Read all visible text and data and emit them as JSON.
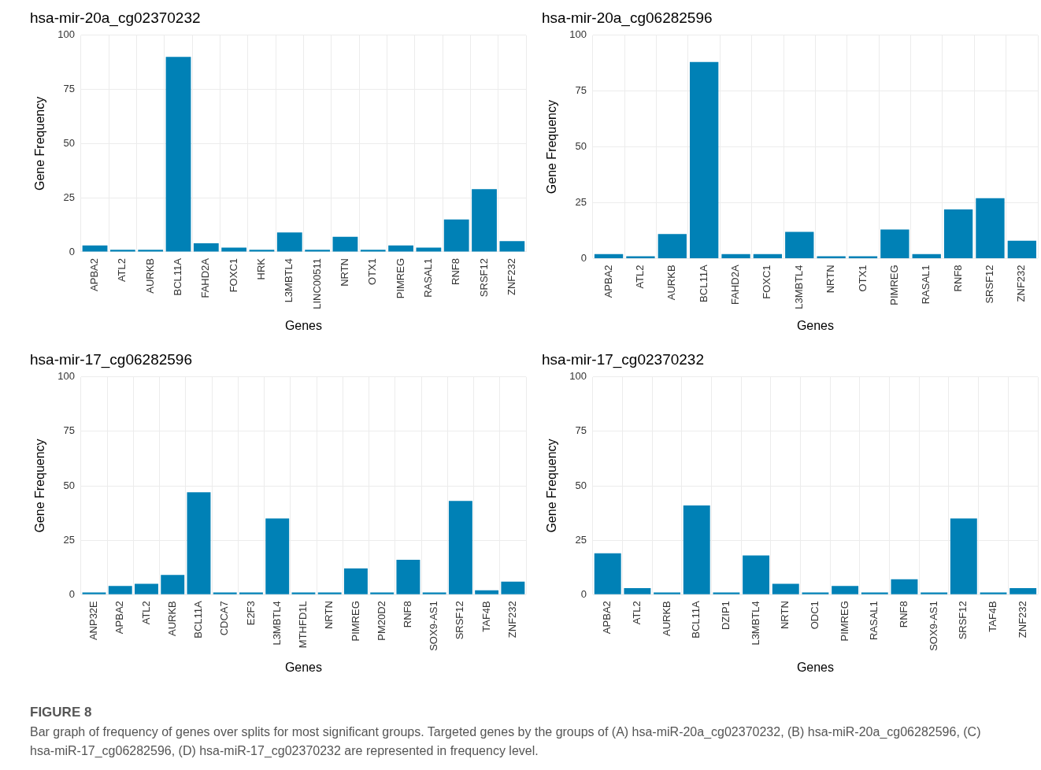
{
  "chart_data": [
    {
      "type": "bar",
      "title": "hsa-mir-20a_cg02370232",
      "xlabel": "Genes",
      "ylabel": "Gene Frequency",
      "color": "#0081b6",
      "ylim": [
        0,
        100
      ],
      "yticks": [
        0,
        25,
        50,
        75,
        100
      ],
      "grid": true,
      "categories": [
        "APBA2",
        "ATL2",
        "AURKB",
        "BCL11A",
        "FAHD2A",
        "FOXC1",
        "HRK",
        "L3MBTL4",
        "LINC00511",
        "NRTN",
        "OTX1",
        "PIMREG",
        "RASAL1",
        "RNF8",
        "SRSF12",
        "ZNF232"
      ],
      "values": [
        3,
        1,
        1,
        90,
        4,
        2,
        1,
        9,
        1,
        7,
        1,
        3,
        2,
        15,
        29,
        5
      ]
    },
    {
      "type": "bar",
      "title": "hsa-mir-20a_cg06282596",
      "xlabel": "Genes",
      "ylabel": "Gene Frequency",
      "color": "#0081b6",
      "ylim": [
        0,
        100
      ],
      "yticks": [
        0,
        25,
        50,
        75,
        100
      ],
      "grid": true,
      "categories": [
        "APBA2",
        "ATL2",
        "AURKB",
        "BCL11A",
        "FAHD2A",
        "FOXC1",
        "L3MBTL4",
        "NRTN",
        "OTX1",
        "PIMREG",
        "RASAL1",
        "RNF8",
        "SRSF12",
        "ZNF232"
      ],
      "values": [
        2,
        1,
        11,
        88,
        2,
        2,
        12,
        1,
        1,
        13,
        2,
        22,
        27,
        8
      ]
    },
    {
      "type": "bar",
      "title": "hsa-mir-17_cg06282596",
      "xlabel": "Genes",
      "ylabel": "Gene Frequency",
      "color": "#0081b6",
      "ylim": [
        0,
        100
      ],
      "yticks": [
        0,
        25,
        50,
        75,
        100
      ],
      "grid": true,
      "categories": [
        "ANP32E",
        "APBA2",
        "ATL2",
        "AURKB",
        "BCL11A",
        "CDCA7",
        "E2F3",
        "L3MBTL4",
        "MTHFD1L",
        "NRTN",
        "PIMREG",
        "PM20D2",
        "RNF8",
        "SOX9-AS1",
        "SRSF12",
        "TAF4B",
        "ZNF232"
      ],
      "values": [
        1,
        4,
        5,
        9,
        47,
        1,
        1,
        35,
        1,
        1,
        12,
        1,
        16,
        1,
        43,
        2,
        6
      ]
    },
    {
      "type": "bar",
      "title": "hsa-mir-17_cg02370232",
      "xlabel": "Genes",
      "ylabel": "Gene Frequency",
      "color": "#0081b6",
      "ylim": [
        0,
        100
      ],
      "yticks": [
        0,
        25,
        50,
        75,
        100
      ],
      "grid": true,
      "categories": [
        "APBA2",
        "ATL2",
        "AURKB",
        "BCL11A",
        "DZIP1",
        "L3MBTL4",
        "NRTN",
        "ODC1",
        "PIMREG",
        "RASAL1",
        "RNF8",
        "SOX9-AS1",
        "SRSF12",
        "TAF4B",
        "ZNF232"
      ],
      "values": [
        19,
        3,
        1,
        41,
        1,
        18,
        5,
        1,
        4,
        1,
        7,
        1,
        35,
        1,
        3
      ],
      "annotations": [
        "FIGURE 8",
        "Bar graph of frequency of genes over splits for most significant groups. Targeted genes by the groups of (A) hsa-miR-20a_cg02370232, (B) hsa-miR-20a_cg06282596, (C) hsa-miR-17_cg06282596, (D) hsa-miR-17_cg02370232 are represented in frequency level."
      ]
    }
  ]
}
